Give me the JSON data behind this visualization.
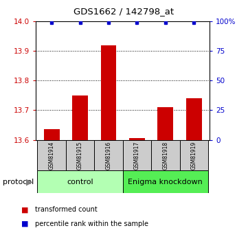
{
  "title": "GDS1662 / 142798_at",
  "samples": [
    "GSM81914",
    "GSM81915",
    "GSM81916",
    "GSM81917",
    "GSM81918",
    "GSM81919"
  ],
  "red_values": [
    13.635,
    13.75,
    13.92,
    13.605,
    13.71,
    13.74
  ],
  "blue_values": [
    99,
    99,
    99,
    99,
    99,
    99
  ],
  "ylim_left": [
    13.6,
    14.0
  ],
  "ylim_right": [
    0,
    100
  ],
  "yticks_left": [
    13.6,
    13.7,
    13.8,
    13.9,
    14.0
  ],
  "yticks_right": [
    0,
    25,
    50,
    75,
    100
  ],
  "ytick_labels_right": [
    "0",
    "25",
    "50",
    "75",
    "100%"
  ],
  "grid_lines": [
    13.7,
    13.8,
    13.9
  ],
  "bar_color": "#cc0000",
  "dot_color": "#0000cc",
  "bg_color_control": "#b3ffb3",
  "bg_color_knockdown": "#55ee55",
  "sample_box_color": "#cccccc",
  "control_label": "control",
  "knockdown_label": "Enigma knockdown",
  "protocol_label": "protocol",
  "legend_red": "transformed count",
  "legend_blue": "percentile rank within the sample",
  "control_count": 3,
  "knockdown_count": 3
}
